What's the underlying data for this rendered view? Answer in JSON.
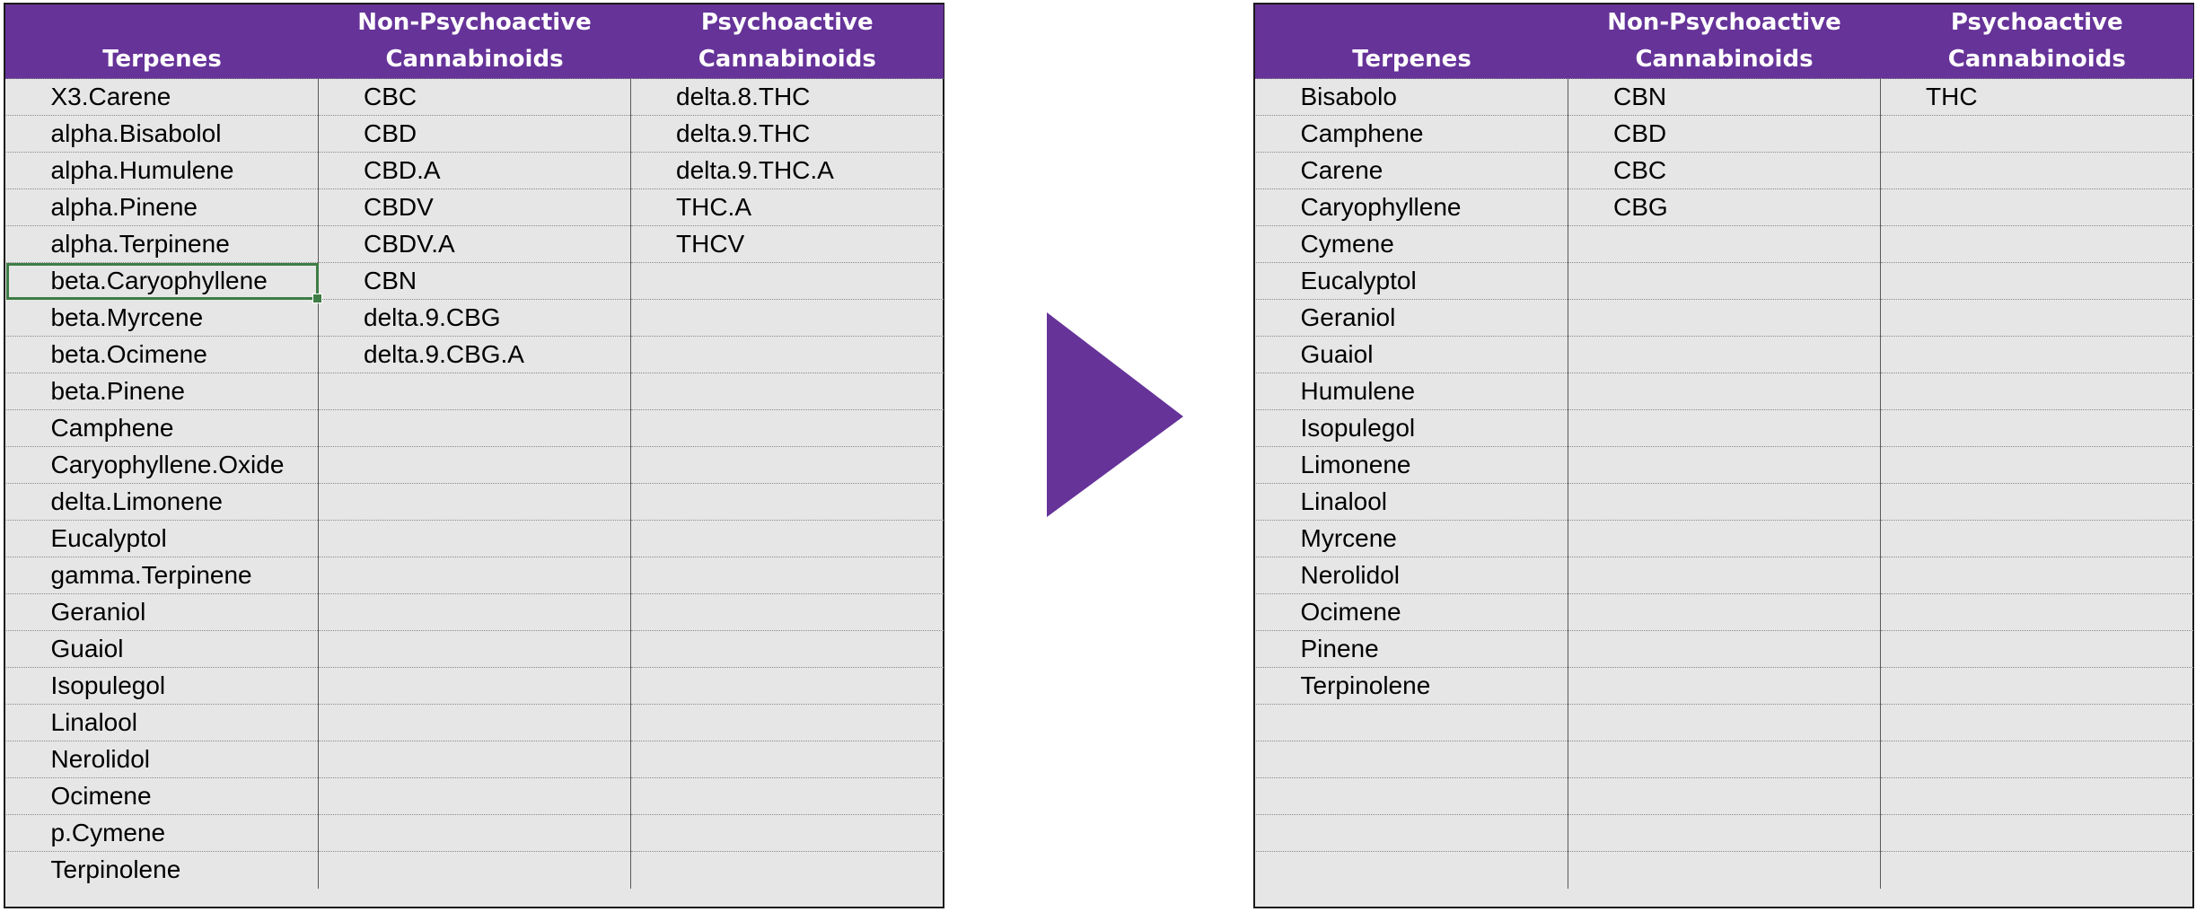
{
  "headers": {
    "col1": [
      "",
      "Terpenes"
    ],
    "col2": [
      "Non-Psychoactive",
      "Cannabinoids"
    ],
    "col3": [
      "Psychoactive",
      "Cannabinoids"
    ]
  },
  "left": {
    "rows": [
      [
        " X3.Carene",
        "CBC",
        "delta.8.THC"
      ],
      [
        "alpha.Bisabolol",
        "CBD",
        "delta.9.THC"
      ],
      [
        "alpha.Humulene",
        "CBD.A",
        "delta.9.THC.A"
      ],
      [
        "alpha.Pinene",
        "CBDV",
        "THC.A"
      ],
      [
        "alpha.Terpinene",
        "CBDV.A",
        "THCV"
      ],
      [
        "beta.Caryophyllene",
        "CBN",
        ""
      ],
      [
        "beta.Myrcene",
        "delta.9.CBG",
        ""
      ],
      [
        "beta.Ocimene",
        "delta.9.CBG.A",
        ""
      ],
      [
        "beta.Pinene",
        "",
        ""
      ],
      [
        "Camphene",
        "",
        ""
      ],
      [
        "Caryophyllene.Oxide",
        "",
        ""
      ],
      [
        "delta.Limonene",
        "",
        ""
      ],
      [
        "Eucalyptol",
        "",
        ""
      ],
      [
        "gamma.Terpinene",
        "",
        ""
      ],
      [
        "Geraniol",
        "",
        ""
      ],
      [
        "Guaiol",
        "",
        ""
      ],
      [
        "Isopulegol",
        "",
        ""
      ],
      [
        "Linalool",
        "",
        ""
      ],
      [
        "Nerolidol",
        "",
        ""
      ],
      [
        "Ocimene",
        "",
        ""
      ],
      [
        "p.Cymene",
        "",
        ""
      ],
      [
        "Terpinolene",
        "",
        ""
      ]
    ]
  },
  "right": {
    "rows": [
      [
        "Bisabolo",
        "CBN",
        "THC"
      ],
      [
        "Camphene",
        "CBD",
        ""
      ],
      [
        "Carene",
        "CBC",
        ""
      ],
      [
        "Caryophyllene",
        "CBG",
        ""
      ],
      [
        "Cymene",
        "",
        ""
      ],
      [
        "Eucalyptol",
        "",
        ""
      ],
      [
        "Geraniol",
        "",
        ""
      ],
      [
        "Guaiol",
        "",
        ""
      ],
      [
        "Humulene",
        "",
        ""
      ],
      [
        "Isopulegol",
        "",
        ""
      ],
      [
        "Limonene",
        "",
        ""
      ],
      [
        "Linalool",
        "",
        ""
      ],
      [
        "Myrcene",
        "",
        ""
      ],
      [
        "Nerolidol",
        "",
        ""
      ],
      [
        "Ocimene",
        "",
        ""
      ],
      [
        "Pinene",
        "",
        ""
      ],
      [
        "Terpinolene",
        "",
        ""
      ],
      [
        "",
        "",
        ""
      ],
      [
        "",
        "",
        ""
      ],
      [
        "",
        "",
        ""
      ],
      [
        "",
        "",
        ""
      ],
      [
        "",
        "",
        ""
      ]
    ]
  },
  "selected_cell": {
    "table": "left",
    "row": 5,
    "col": 0
  },
  "colors": {
    "header_bg": "#663399",
    "header_text": "#FFFFFF",
    "cell_bg": "#E6E6E6",
    "selection": "#3E7D45",
    "arrow": "#663399"
  },
  "arrow_icon": "play-triangle-right"
}
